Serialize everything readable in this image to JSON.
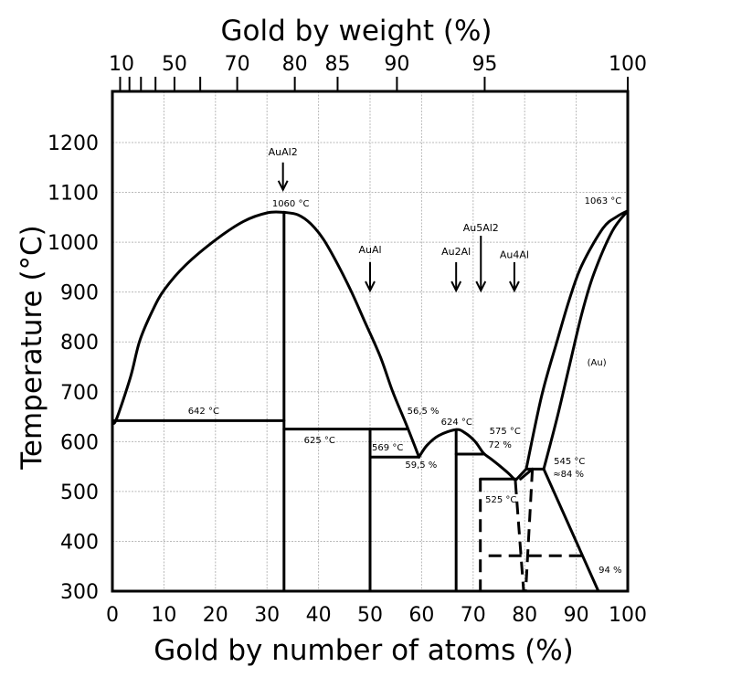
{
  "chart_data": {
    "type": "line",
    "kind": "phase diagram",
    "title_top": "Gold by weight (%)",
    "xlabel": "Gold by number of atoms (%)",
    "ylabel": "Temperature (°C)",
    "xlim": [
      0,
      100
    ],
    "ylim": [
      300,
      1300
    ],
    "grid": true,
    "x_ticks": [
      0,
      10,
      20,
      30,
      40,
      50,
      60,
      70,
      80,
      90,
      100
    ],
    "y_ticks": [
      300,
      400,
      500,
      600,
      700,
      800,
      900,
      1000,
      1100,
      1200
    ],
    "top_axis": {
      "tick_values_wt": [
        10,
        20,
        30,
        40,
        50,
        60,
        70,
        80,
        85,
        90,
        95,
        100
      ],
      "labels": [
        "10",
        "50",
        "70",
        "80",
        "85",
        "90",
        "95",
        "100"
      ],
      "label_values_wt": [
        10,
        50,
        70,
        80,
        85,
        90,
        95,
        100
      ]
    },
    "curves": [
      {
        "id": "liquidus-al-side",
        "style": "solid",
        "points": [
          [
            0,
            642
          ],
          [
            0.7,
            643
          ],
          [
            3.5,
            729
          ],
          [
            5.3,
            802
          ],
          [
            7.8,
            863
          ],
          [
            10.1,
            905
          ],
          [
            14.2,
            954
          ],
          [
            20.2,
            1006
          ],
          [
            25.5,
            1042
          ],
          [
            30.1,
            1059
          ],
          [
            33.3,
            1060
          ]
        ]
      },
      {
        "id": "liquidus-aual2-right",
        "style": "solid",
        "points": [
          [
            33.3,
            1060
          ],
          [
            36,
            1055
          ],
          [
            38.5,
            1037
          ],
          [
            41,
            1005
          ],
          [
            43.8,
            954
          ],
          [
            46.5,
            898
          ],
          [
            49,
            840
          ],
          [
            52,
            770
          ],
          [
            54.4,
            700
          ],
          [
            57,
            635
          ],
          [
            59.5,
            569
          ]
        ]
      },
      {
        "id": "liquidus-au2al-dome",
        "style": "solid",
        "points": [
          [
            59.5,
            569
          ],
          [
            61,
            592
          ],
          [
            63.3,
            612
          ],
          [
            66.7,
            624
          ],
          [
            68.5,
            617
          ],
          [
            70.4,
            600
          ],
          [
            72,
            577
          ],
          [
            73.5,
            565
          ],
          [
            75.2,
            551
          ],
          [
            77,
            535
          ],
          [
            78.2,
            522
          ]
        ]
      },
      {
        "id": "liquidus-au-side",
        "style": "solid",
        "points": [
          [
            80.3,
            545
          ],
          [
            83.3,
            692
          ],
          [
            86.3,
            802
          ],
          [
            88.7,
            886
          ],
          [
            91.1,
            954
          ],
          [
            95.2,
            1028
          ],
          [
            98,
            1052
          ],
          [
            100,
            1063
          ]
        ]
      },
      {
        "id": "solidus-au",
        "style": "solid",
        "points": [
          [
            83.7,
            545
          ],
          [
            86.3,
            648
          ],
          [
            88.7,
            753
          ],
          [
            91.1,
            857
          ],
          [
            93.4,
            936
          ],
          [
            97,
            1022
          ],
          [
            100,
            1063
          ]
        ]
      },
      {
        "id": "solvus-au",
        "style": "solid",
        "points": [
          [
            83.7,
            545
          ],
          [
            94.3,
            300
          ]
        ]
      },
      {
        "id": "eutectic-642",
        "style": "solid",
        "points": [
          [
            0,
            642
          ],
          [
            33.3,
            642
          ]
        ]
      },
      {
        "id": "peritectic-625",
        "style": "solid",
        "points": [
          [
            33.3,
            625
          ],
          [
            57,
            625
          ]
        ]
      },
      {
        "id": "eutectic-569",
        "style": "solid",
        "points": [
          [
            50,
            569
          ],
          [
            59.5,
            569
          ]
        ]
      },
      {
        "id": "peritectic-575",
        "style": "solid",
        "points": [
          [
            66.7,
            575
          ],
          [
            72,
            575
          ]
        ]
      },
      {
        "id": "eutectic-525",
        "style": "solid",
        "points": [
          [
            71.4,
            525
          ],
          [
            78.2,
            525
          ]
        ]
      },
      {
        "id": "peritectic-545",
        "style": "solid",
        "points": [
          [
            80.3,
            545
          ],
          [
            83.7,
            545
          ]
        ]
      },
      {
        "id": "aual2-line",
        "style": "solid",
        "points": [
          [
            33.3,
            300
          ],
          [
            33.3,
            1060
          ]
        ]
      },
      {
        "id": "aual-line",
        "style": "solid",
        "points": [
          [
            50,
            300
          ],
          [
            50,
            625
          ]
        ]
      },
      {
        "id": "au2al-line",
        "style": "solid",
        "points": [
          [
            66.7,
            300
          ],
          [
            66.7,
            624
          ]
        ]
      },
      {
        "id": "connector-a",
        "style": "solid",
        "points": [
          [
            78.2,
            522
          ],
          [
            80.3,
            545
          ]
        ]
      },
      {
        "id": "connector-b",
        "style": "solid",
        "points": [
          [
            79.2,
            525
          ],
          [
            81.5,
            545
          ]
        ]
      },
      {
        "id": "au5al2-dashed",
        "style": "dashed",
        "points": [
          [
            71.4,
            525
          ],
          [
            71.4,
            300
          ]
        ]
      },
      {
        "id": "au4al-dashed-a",
        "style": "dashed",
        "points": [
          [
            78.2,
            520
          ],
          [
            79.8,
            300
          ]
        ]
      },
      {
        "id": "au4al-dashed-b",
        "style": "dashed",
        "points": [
          [
            81.5,
            545
          ],
          [
            80.2,
            300
          ]
        ]
      },
      {
        "id": "ordering-371",
        "style": "dashed",
        "points": [
          [
            73,
            371
          ],
          [
            91.1,
            371
          ]
        ]
      }
    ],
    "compounds": [
      {
        "label": "AuAl2",
        "x": 33.1,
        "label_t": 1180,
        "arrow_from": 1160,
        "arrow_to": 1105
      },
      {
        "label": "AuAl",
        "x": 50,
        "label_t": 984,
        "arrow_from": 960,
        "arrow_to": 903
      },
      {
        "label": "Au2Al",
        "x": 66.7,
        "label_t": 980,
        "arrow_from": 960,
        "arrow_to": 903
      },
      {
        "label": "Au5Al2",
        "x": 71.5,
        "label_t": 1028,
        "arrow_from": 1013,
        "arrow_to": 903
      },
      {
        "label": "Au4Al",
        "x": 78,
        "label_t": 974,
        "arrow_from": 960,
        "arrow_to": 903
      }
    ],
    "annotations": [
      {
        "text": "1060 °C",
        "x": 34.6,
        "t": 1077
      },
      {
        "text": "1063 °C",
        "x": 95.2,
        "t": 1083
      },
      {
        "text": "642 °C",
        "x": 17.7,
        "t": 661
      },
      {
        "text": "625 °C",
        "x": 40.2,
        "t": 602
      },
      {
        "text": "56,5 %",
        "x": 60.3,
        "t": 661
      },
      {
        "text": "624 °C",
        "x": 66.8,
        "t": 639
      },
      {
        "text": "575 °C",
        "x": 76.2,
        "t": 621
      },
      {
        "text": "72 %",
        "x": 75.2,
        "t": 593
      },
      {
        "text": "569 °C",
        "x": 53.4,
        "t": 588
      },
      {
        "text": "59,5 %",
        "x": 59.9,
        "t": 553
      },
      {
        "text": "525 °C",
        "x": 75.4,
        "t": 483
      },
      {
        "text": "545 °C",
        "x": 88.7,
        "t": 560
      },
      {
        "text": "≈84 %",
        "x": 88.5,
        "t": 535
      },
      {
        "text": "94 %",
        "x": 96.6,
        "t": 342
      },
      {
        "text": "(Au)",
        "x": 94,
        "t": 758
      }
    ]
  }
}
